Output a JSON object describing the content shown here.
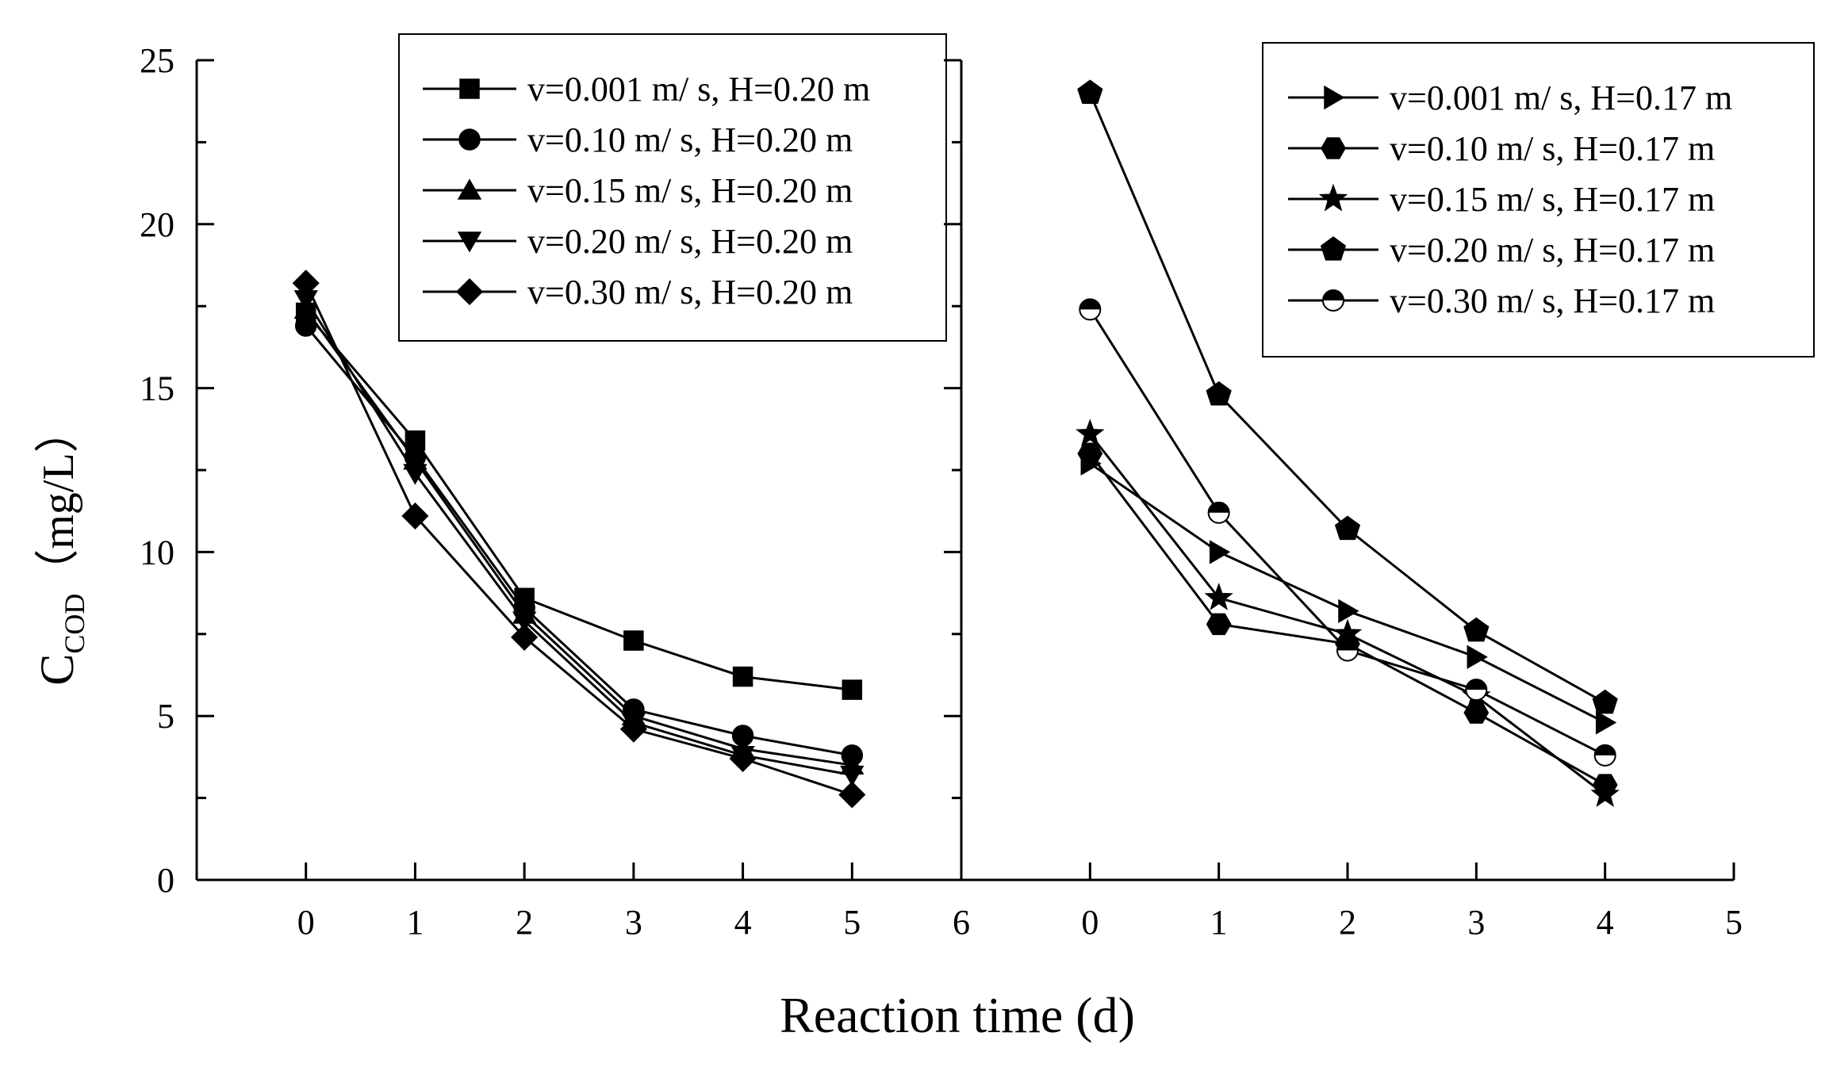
{
  "figure": {
    "ylabel_main": "C",
    "ylabel_sub": "COD",
    "ylabel_unit": "（mg/L）",
    "xlabel": "Reaction time (d)"
  },
  "chart_data": [
    {
      "type": "line",
      "panel": "left",
      "xlim": [
        -1,
        6
      ],
      "ylim": [
        0,
        25
      ],
      "xticks": [
        "0",
        "1",
        "2",
        "3",
        "4",
        "5",
        "6"
      ],
      "yticks": [
        "0",
        "5",
        "10",
        "15",
        "20",
        "25"
      ],
      "legend_position": "top-right",
      "series": [
        {
          "name": "v=0.001 m/ s, H=0.20 m",
          "marker": "square",
          "x": [
            0,
            1,
            2,
            3,
            4,
            5
          ],
          "values": [
            17.3,
            13.4,
            8.6,
            7.3,
            6.2,
            5.8
          ]
        },
        {
          "name": "v=0.10 m/ s, H=0.20 m",
          "marker": "circle",
          "x": [
            0,
            1,
            2,
            3,
            4,
            5
          ],
          "values": [
            16.9,
            12.9,
            8.3,
            5.2,
            4.4,
            3.8
          ]
        },
        {
          "name": "v=0.15 m/ s, H=0.20 m",
          "marker": "triangle-up",
          "x": [
            0,
            1,
            2,
            3,
            4,
            5
          ],
          "values": [
            17.4,
            12.8,
            8.1,
            5.0,
            4.0,
            3.5
          ]
        },
        {
          "name": "v=0.20 m/ s, H=0.20 m",
          "marker": "triangle-down",
          "x": [
            0,
            1,
            2,
            3,
            4,
            5
          ],
          "values": [
            17.7,
            12.4,
            7.9,
            4.8,
            3.8,
            3.2
          ]
        },
        {
          "name": "v=0.30 m/ s, H=0.20 m",
          "marker": "diamond",
          "x": [
            0,
            1,
            2,
            3,
            4,
            5
          ],
          "values": [
            18.2,
            11.1,
            7.4,
            4.6,
            3.7,
            2.6
          ]
        }
      ]
    },
    {
      "type": "line",
      "panel": "right",
      "xlim": [
        -1,
        5
      ],
      "ylim": [
        0,
        25
      ],
      "xticks": [
        "0",
        "1",
        "2",
        "3",
        "4",
        "5"
      ],
      "yticks": [],
      "legend_position": "top-right",
      "series": [
        {
          "name": "v=0.001 m/ s, H=0.17 m",
          "marker": "triangle-right",
          "x": [
            0,
            1,
            2,
            3,
            4
          ],
          "values": [
            12.7,
            10.0,
            8.2,
            6.8,
            4.8
          ]
        },
        {
          "name": "v=0.10 m/ s, H=0.17 m",
          "marker": "hexagon",
          "x": [
            0,
            1,
            2,
            3,
            4
          ],
          "values": [
            13.0,
            7.8,
            7.2,
            5.1,
            2.9
          ]
        },
        {
          "name": "v=0.15 m/ s, H=0.17 m",
          "marker": "star",
          "x": [
            0,
            1,
            2,
            3,
            4
          ],
          "values": [
            13.6,
            8.6,
            7.5,
            5.6,
            2.6
          ]
        },
        {
          "name": "v=0.20 m/ s, H=0.17 m",
          "marker": "pentagon",
          "x": [
            0,
            1,
            2,
            3,
            4
          ],
          "values": [
            24.0,
            14.8,
            10.7,
            7.6,
            5.4
          ]
        },
        {
          "name": "v=0.30 m/ s, H=0.17 m",
          "marker": "half-circle",
          "x": [
            0,
            1,
            2,
            3,
            4
          ],
          "values": [
            17.4,
            11.2,
            7.0,
            5.8,
            3.8
          ]
        }
      ]
    }
  ]
}
